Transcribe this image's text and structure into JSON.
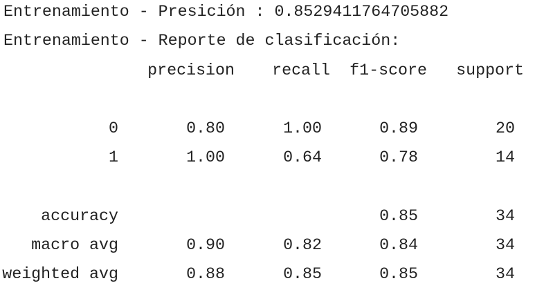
{
  "output": {
    "accuracy_line": "Entrenamiento - Presición : 0.8529411764705882",
    "report_title": "Entrenamiento - Reporte de clasificación:",
    "columns": [
      "precision",
      "recall",
      "f1-score",
      "support"
    ],
    "rows": [
      {
        "label": "0",
        "precision": "0.80",
        "recall": "1.00",
        "f1": "0.89",
        "support": "20"
      },
      {
        "label": "1",
        "precision": "1.00",
        "recall": "0.64",
        "f1": "0.78",
        "support": "14"
      }
    ],
    "summary": [
      {
        "label": "accuracy",
        "precision": "",
        "recall": "",
        "f1": "0.85",
        "support": "34"
      },
      {
        "label": "macro avg",
        "precision": "0.90",
        "recall": "0.82",
        "f1": "0.84",
        "support": "34"
      },
      {
        "label": "weighted avg",
        "precision": "0.88",
        "recall": "0.85",
        "f1": "0.85",
        "support": "34"
      }
    ]
  }
}
